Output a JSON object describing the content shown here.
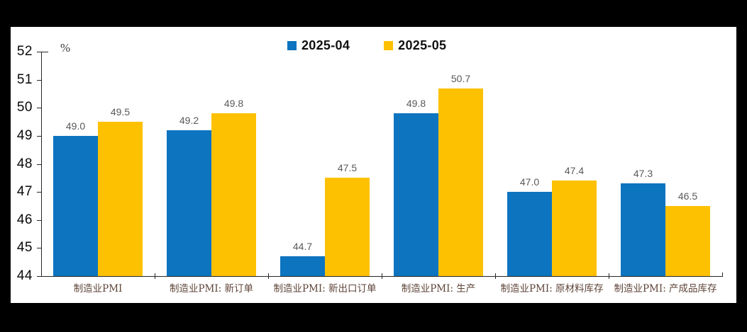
{
  "chart_data": {
    "type": "bar",
    "title": "",
    "unit_label": "%",
    "categories": [
      "制造业PMI",
      "制造业PMI: 新订单",
      "制造业PMI: 新出口订单",
      "制造业PMI: 生产",
      "制造业PMI: 原材料库存",
      "制造业PMI: 产成品库存"
    ],
    "series": [
      {
        "name": "2025-04",
        "color": "#0d74c0",
        "values": [
          49.0,
          49.2,
          44.7,
          49.8,
          47.0,
          47.3
        ]
      },
      {
        "name": "2025-05",
        "color": "#fec102",
        "values": [
          49.5,
          49.8,
          47.5,
          50.7,
          47.4,
          46.5
        ]
      }
    ],
    "value_labels": [
      "49.0",
      "49.2",
      "44.7",
      "49.8",
      "47.0",
      "47.3",
      "49.5",
      "49.8",
      "47.5",
      "50.7",
      "47.4",
      "46.5"
    ],
    "ylim": [
      44,
      52
    ],
    "yticks": [
      44,
      45,
      46,
      47,
      48,
      49,
      50,
      51,
      52
    ],
    "grid": false,
    "legend_position": "top-center",
    "colors": {
      "background": "#000000",
      "panel": "#ffffff",
      "axis": "#262626",
      "value_label_text": "#595959",
      "category_label_text": "#5e4337",
      "ytick_label_text": "#0a0a0a",
      "legend_text": "#111111"
    }
  }
}
